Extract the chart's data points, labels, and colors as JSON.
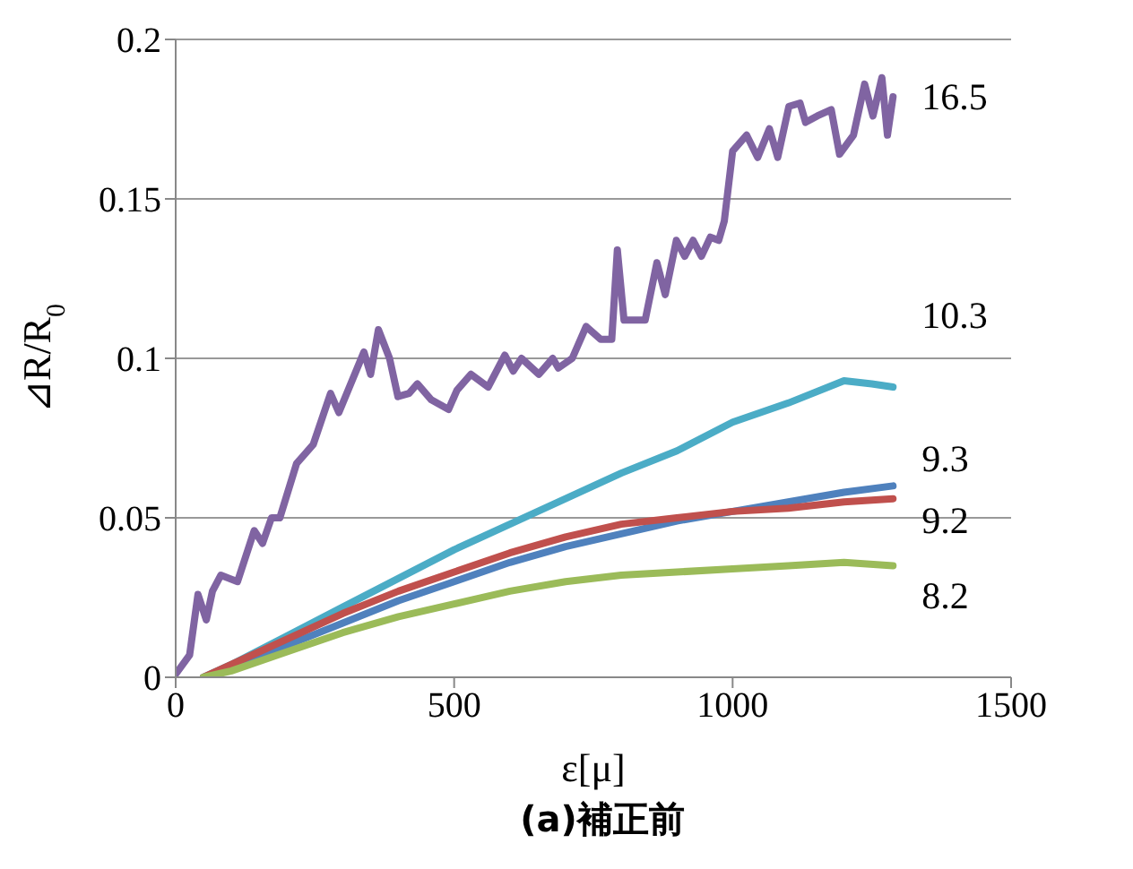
{
  "chart_data": {
    "type": "line",
    "xlabel": "ε[μ]",
    "ylabel": "⊿R/R$_{0}$",
    "annotations": [
      "(a)補正前"
    ],
    "xlim": [
      0,
      1500
    ],
    "xticks": [
      0,
      500,
      1000,
      1500
    ],
    "ylim": [
      0,
      0.2
    ],
    "yticks": [
      0,
      0.05,
      0.1,
      0.15,
      0.2
    ],
    "grid": "y",
    "legend": false,
    "marker": "none",
    "line_style": "solid",
    "series": [
      {
        "name": "16.5",
        "color": "#8064a2",
        "x": [
          0,
          25,
          40,
          55,
          66,
          81,
          111,
          141,
          156,
          172,
          187,
          217,
          247,
          278,
          293,
          338,
          350,
          364,
          384,
          399,
          419,
          434,
          459,
          490,
          505,
          530,
          561,
          591,
          606,
          621,
          652,
          677,
          687,
          712,
          737,
          763,
          783,
          793,
          805,
          818,
          843,
          864,
          879,
          899,
          914,
          929,
          944,
          960,
          975,
          985,
          1000,
          1025,
          1045,
          1066,
          1081,
          1101,
          1121,
          1131,
          1152,
          1177,
          1192,
          1217,
          1237,
          1252,
          1268,
          1278,
          1288
        ],
        "values": [
          0.001,
          0.007,
          0.026,
          0.018,
          0.027,
          0.032,
          0.03,
          0.046,
          0.042,
          0.05,
          0.05,
          0.067,
          0.073,
          0.089,
          0.083,
          0.102,
          0.095,
          0.109,
          0.1,
          0.088,
          0.089,
          0.092,
          0.087,
          0.084,
          0.09,
          0.095,
          0.091,
          0.101,
          0.096,
          0.1,
          0.095,
          0.1,
          0.097,
          0.1,
          0.11,
          0.106,
          0.106,
          0.134,
          0.112,
          0.112,
          0.112,
          0.13,
          0.12,
          0.137,
          0.132,
          0.137,
          0.132,
          0.138,
          0.137,
          0.143,
          0.165,
          0.17,
          0.163,
          0.172,
          0.163,
          0.179,
          0.18,
          0.174,
          0.176,
          0.178,
          0.164,
          0.17,
          0.186,
          0.176,
          0.188,
          0.17,
          0.182
        ]
      },
      {
        "name": "10.3",
        "color": "#4bacc6",
        "x": [
          50,
          100,
          200,
          300,
          400,
          500,
          600,
          700,
          800,
          900,
          1000,
          1100,
          1200,
          1250,
          1288
        ],
        "values": [
          0,
          0.004,
          0.013,
          0.022,
          0.031,
          0.04,
          0.048,
          0.056,
          0.064,
          0.071,
          0.08,
          0.086,
          0.093,
          0.092,
          0.091
        ]
      },
      {
        "name": "9.3",
        "color": "#4f81bd",
        "x": [
          50,
          100,
          200,
          300,
          400,
          500,
          600,
          700,
          800,
          900,
          1000,
          1100,
          1200,
          1288
        ],
        "values": [
          0,
          0.003,
          0.01,
          0.017,
          0.024,
          0.03,
          0.036,
          0.041,
          0.045,
          0.049,
          0.052,
          0.055,
          0.058,
          0.06
        ]
      },
      {
        "name": "9.2",
        "color": "#c0504d",
        "x": [
          50,
          100,
          200,
          300,
          400,
          500,
          600,
          700,
          800,
          900,
          1000,
          1100,
          1200,
          1288
        ],
        "values": [
          0,
          0.004,
          0.012,
          0.02,
          0.027,
          0.033,
          0.039,
          0.044,
          0.048,
          0.05,
          0.052,
          0.053,
          0.055,
          0.056
        ]
      },
      {
        "name": "8.2",
        "color": "#9bbb59",
        "x": [
          50,
          100,
          200,
          300,
          400,
          500,
          600,
          700,
          800,
          900,
          1000,
          1100,
          1200,
          1288
        ],
        "values": [
          0,
          0.002,
          0.008,
          0.014,
          0.019,
          0.023,
          0.027,
          0.03,
          0.032,
          0.033,
          0.034,
          0.035,
          0.036,
          0.035
        ]
      }
    ]
  }
}
